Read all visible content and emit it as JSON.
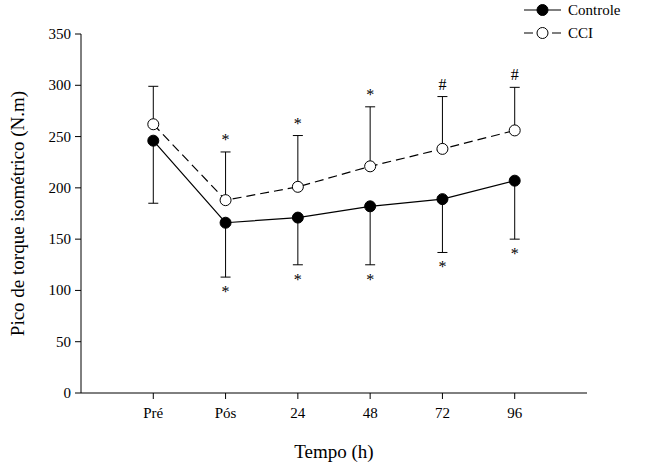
{
  "chart_data": {
    "type": "line",
    "x_label": "Tempo (h)",
    "y_label": "Pico de torque isométrico (N.m)",
    "categories": [
      "Pré",
      "Pós",
      "24",
      "48",
      "72",
      "96"
    ],
    "ylim": [
      0,
      350
    ],
    "yticks": [
      0,
      50,
      100,
      150,
      200,
      250,
      300,
      350
    ],
    "grid": false,
    "legend": "upper right",
    "series": [
      {
        "name": "Controle",
        "color": "#000000",
        "marker": "filled-circle",
        "line_style": "solid",
        "values": [
          246,
          166,
          171,
          182,
          189,
          207
        ],
        "errors": [
          61,
          53,
          46,
          57,
          52,
          57
        ],
        "annotations": [
          null,
          "*",
          "*",
          "*",
          "*",
          "*"
        ]
      },
      {
        "name": "CCI",
        "color": "#000000",
        "marker": "open-circle",
        "line_style": "dashed",
        "values": [
          262,
          188,
          201,
          221,
          238,
          256
        ],
        "errors": [
          37,
          47,
          50,
          58,
          51,
          42
        ],
        "annotations": [
          null,
          "*",
          "*",
          "*",
          "#",
          "#"
        ]
      }
    ]
  }
}
